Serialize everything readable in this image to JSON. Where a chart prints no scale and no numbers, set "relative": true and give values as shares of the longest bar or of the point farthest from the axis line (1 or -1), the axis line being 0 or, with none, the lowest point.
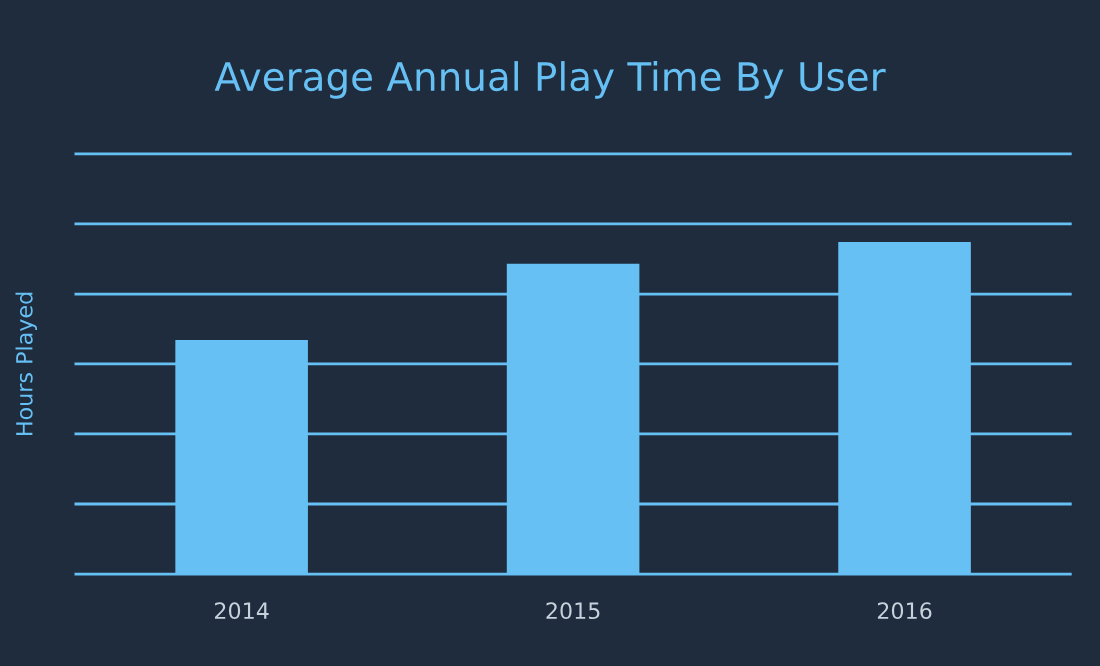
{
  "chart_data": {
    "type": "bar",
    "title": "Average Annual Play Time By User",
    "ylabel": "Hours Played",
    "categories": [
      "2014",
      "2015",
      "2016"
    ],
    "values": [
      0.705,
      0.934,
      1
    ],
    "color": "#66c0f4",
    "relative": true,
    "tick_labels": "x",
    "ref_lines": [
      {
        "axis": "y",
        "value": 0,
        "color": "#66c0f4"
      },
      {
        "axis": "y",
        "value": 0.211,
        "color": "#66c0f4"
      },
      {
        "axis": "y",
        "value": 0.422,
        "color": "#66c0f4"
      },
      {
        "axis": "y",
        "value": 0.633,
        "color": "#66c0f4"
      },
      {
        "axis": "y",
        "value": 0.843,
        "color": "#66c0f4"
      },
      {
        "axis": "y",
        "value": 1.054,
        "color": "#66c0f4"
      },
      {
        "axis": "y",
        "value": 1.265,
        "color": "#66c0f4"
      }
    ]
  }
}
